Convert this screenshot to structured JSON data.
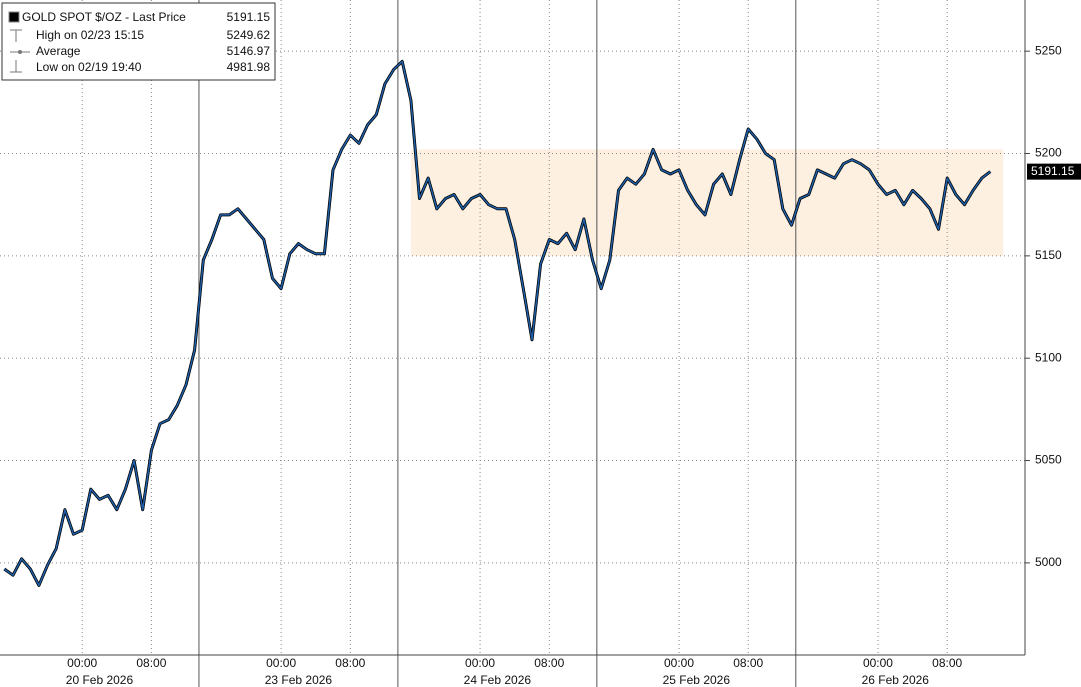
{
  "chart_data": {
    "type": "line",
    "color": "#1f5fa8",
    "legend": {
      "title": "GOLD SPOT $/OZ - Last Price",
      "value": 5191.15,
      "items": [
        {
          "label": "High on 02/23 15:15",
          "value": 5249.62
        },
        {
          "label": "Average",
          "value": 5146.97
        },
        {
          "label": "Low on 02/19 19:40",
          "value": 4981.98
        }
      ]
    },
    "x": [
      "2026-02-19 15:00",
      "2026-02-19 16:00",
      "2026-02-19 17:00",
      "2026-02-19 18:00",
      "2026-02-19 19:00",
      "2026-02-19 20:00",
      "2026-02-19 21:00",
      "2026-02-19 22:00",
      "2026-02-19 23:00",
      "2026-02-20 00:00",
      "2026-02-20 01:00",
      "2026-02-20 02:00",
      "2026-02-20 03:00",
      "2026-02-20 04:00",
      "2026-02-20 05:00",
      "2026-02-20 06:00",
      "2026-02-20 07:00",
      "2026-02-20 08:00",
      "2026-02-20 09:00",
      "2026-02-20 10:00",
      "2026-02-20 11:00",
      "2026-02-20 12:00",
      "2026-02-20 13:00",
      "2026-02-22 15:00",
      "2026-02-22 16:00",
      "2026-02-22 17:00",
      "2026-02-22 18:00",
      "2026-02-22 19:00",
      "2026-02-22 20:00",
      "2026-02-22 21:00",
      "2026-02-22 22:00",
      "2026-02-22 23:00",
      "2026-02-23 00:00",
      "2026-02-23 01:00",
      "2026-02-23 02:00",
      "2026-02-23 03:00",
      "2026-02-23 04:00",
      "2026-02-23 05:00",
      "2026-02-23 06:00",
      "2026-02-23 07:00",
      "2026-02-23 08:00",
      "2026-02-23 09:00",
      "2026-02-23 10:00",
      "2026-02-23 11:00",
      "2026-02-23 12:00",
      "2026-02-23 13:00",
      "2026-02-23 15:00",
      "2026-02-23 16:00",
      "2026-02-23 17:00",
      "2026-02-23 18:00",
      "2026-02-23 19:00",
      "2026-02-23 20:00",
      "2026-02-23 21:00",
      "2026-02-23 22:00",
      "2026-02-23 23:00",
      "2026-02-24 00:00",
      "2026-02-24 01:00",
      "2026-02-24 02:00",
      "2026-02-24 03:00",
      "2026-02-24 04:00",
      "2026-02-24 05:00",
      "2026-02-24 06:00",
      "2026-02-24 07:00",
      "2026-02-24 08:00",
      "2026-02-24 09:00",
      "2026-02-24 10:00",
      "2026-02-24 11:00",
      "2026-02-24 12:00",
      "2026-02-24 13:00",
      "2026-02-24 15:00",
      "2026-02-24 16:00",
      "2026-02-24 17:00",
      "2026-02-24 18:00",
      "2026-02-24 19:00",
      "2026-02-24 20:00",
      "2026-02-24 21:00",
      "2026-02-24 22:00",
      "2026-02-24 23:00",
      "2026-02-25 00:00",
      "2026-02-25 01:00",
      "2026-02-25 02:00",
      "2026-02-25 03:00",
      "2026-02-25 04:00",
      "2026-02-25 05:00",
      "2026-02-25 06:00",
      "2026-02-25 07:00",
      "2026-02-25 08:00",
      "2026-02-25 09:00",
      "2026-02-25 10:00",
      "2026-02-25 11:00",
      "2026-02-25 12:00",
      "2026-02-25 13:00",
      "2026-02-25 15:00",
      "2026-02-25 16:00",
      "2026-02-25 17:00",
      "2026-02-25 18:00",
      "2026-02-25 19:00",
      "2026-02-25 20:00",
      "2026-02-25 21:00",
      "2026-02-25 22:00",
      "2026-02-25 23:00",
      "2026-02-26 00:00",
      "2026-02-26 01:00",
      "2026-02-26 02:00",
      "2026-02-26 03:00",
      "2026-02-26 04:00",
      "2026-02-26 05:00",
      "2026-02-26 06:00",
      "2026-02-26 07:00",
      "2026-02-26 08:00",
      "2026-02-26 09:00",
      "2026-02-26 10:00",
      "2026-02-26 11:00",
      "2026-02-26 12:00",
      "2026-02-26 13:00"
    ],
    "values": [
      4997,
      4994,
      5002,
      4997,
      4989,
      4999,
      5007,
      5026,
      5014,
      5016,
      5036,
      5031,
      5033,
      5026,
      5036,
      5050,
      5026,
      5055,
      5068,
      5070,
      5077,
      5087,
      5104,
      5148,
      5158,
      5170,
      5170,
      5173,
      5168,
      5163,
      5158,
      5139,
      5134,
      5151,
      5156,
      5153,
      5151,
      5151,
      5192,
      5202,
      5209,
      5205,
      5214,
      5219,
      5234,
      5241,
      5245,
      5226,
      5178,
      5188,
      5173,
      5178,
      5180,
      5173,
      5178,
      5180,
      5175,
      5173,
      5173,
      5158,
      5134,
      5109,
      5146,
      5158,
      5156,
      5161,
      5153,
      5168,
      5148,
      5134,
      5148,
      5182,
      5188,
      5185,
      5190,
      5202,
      5192,
      5190,
      5192,
      5182,
      5175,
      5170,
      5185,
      5190,
      5180,
      5197,
      5212,
      5207,
      5200,
      5197,
      5173,
      5165,
      5178,
      5180,
      5192,
      5190,
      5188,
      5195,
      5197,
      5195,
      5192,
      5185,
      5180,
      5182,
      5175,
      5182,
      5178,
      5173,
      5163,
      5188,
      5180,
      5175,
      5182,
      5188,
      5191.15
    ],
    "ylim": [
      4955,
      5275
    ],
    "yticks": [
      5000,
      5050,
      5100,
      5150,
      5200,
      5250
    ],
    "grid": true,
    "xticks": [
      {
        "value": "2026-02-20 00:00",
        "label": "00:00"
      },
      {
        "value": "2026-02-20 08:00",
        "label": "08:00"
      },
      {
        "value": "2026-02-23 00:00",
        "label": "00:00"
      },
      {
        "value": "2026-02-23 08:00",
        "label": "08:00"
      },
      {
        "value": "2026-02-24 00:00",
        "label": "00:00"
      },
      {
        "value": "2026-02-24 08:00",
        "label": "08:00"
      },
      {
        "value": "2026-02-25 00:00",
        "label": "00:00"
      },
      {
        "value": "2026-02-25 08:00",
        "label": "08:00"
      },
      {
        "value": "2026-02-26 00:00",
        "label": "00:00"
      },
      {
        "value": "2026-02-26 08:00",
        "label": "08:00"
      }
    ],
    "day_labels": [
      {
        "value": "2026-02-20 02:00",
        "label": "20 Feb 2026"
      },
      {
        "value": "2026-02-23 02:00",
        "label": "23 Feb 2026"
      },
      {
        "value": "2026-02-24 02:00",
        "label": "24 Feb 2026"
      },
      {
        "value": "2026-02-25 02:00",
        "label": "25 Feb 2026"
      },
      {
        "value": "2026-02-26 02:00",
        "label": "26 Feb 2026"
      }
    ],
    "day_breaks": [
      "2026-02-22 15:00",
      "2026-02-23 15:00",
      "2026-02-24 15:00",
      "2026-02-25 15:00"
    ],
    "highlight": {
      "ylim": [
        5150,
        5202
      ],
      "x": [
        "2026-02-23 16:00",
        "2026-02-26 13:00"
      ],
      "color": "#fdf0e0"
    }
  }
}
